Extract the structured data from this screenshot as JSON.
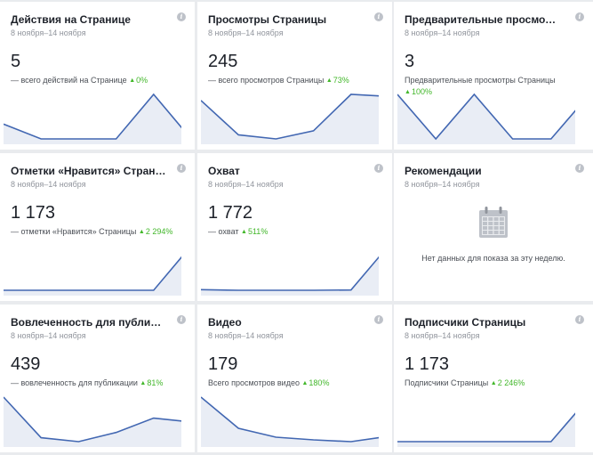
{
  "cards": [
    {
      "title": "Действия на Странице",
      "date": "8 ноября–14 ноября",
      "value": "5",
      "sub_text": "— всего действий на Странице",
      "delta": "0%",
      "series": [
        2,
        0,
        0,
        0,
        6,
        0
      ]
    },
    {
      "title": "Просмотры Страницы",
      "date": "8 ноября–14 ноября",
      "value": "245",
      "sub_text": "— всего просмотров Страницы",
      "delta": "73%",
      "series": [
        44,
        27,
        25,
        29,
        47,
        46
      ]
    },
    {
      "title": "Предварительные просмотры",
      "date": "8 ноября–14 ноября",
      "value": "3",
      "sub_text": "Предварительные просмотры Страницы",
      "delta": "100%",
      "series": [
        1,
        0,
        1,
        0,
        0,
        1
      ]
    },
    {
      "title": "Отметки «Нравится» Страницы",
      "date": "8 ноября–14 ноября",
      "value": "1 173",
      "sub_text": "— отметки «Нравится» Страницы",
      "delta": "2 294%",
      "series": [
        0,
        0,
        0,
        0,
        0,
        1120
      ]
    },
    {
      "title": "Охват",
      "date": "8 ноября–14 ноября",
      "value": "1 772",
      "sub_text": "— охват",
      "delta": "511%",
      "series": [
        60,
        40,
        40,
        40,
        50,
        1500
      ]
    },
    {
      "title": "Рекомендации",
      "date": "8 ноября–14 ноября",
      "empty": true,
      "empty_text": "Нет данных для показа за эту неделю."
    },
    {
      "title": "Вовлеченность для публикации",
      "date": "8 ноября–14 ноября",
      "value": "439",
      "sub_text": "— вовлеченность для публикации",
      "delta": "81%",
      "series": [
        80,
        18,
        12,
        26,
        48,
        42
      ]
    },
    {
      "title": "Видео",
      "date": "8 ноября–14 ноября",
      "value": "179",
      "sub_text": "Всего просмотров видео",
      "delta": "180%",
      "series": [
        60,
        25,
        15,
        12,
        10,
        16
      ]
    },
    {
      "title": "Подписчики Страницы",
      "date": "8 ноября–14 ноября",
      "value": "1 173",
      "sub_text": "Подписчики Страницы",
      "delta": "2 246%",
      "series": [
        0,
        0,
        0,
        0,
        0,
        1120
      ]
    }
  ],
  "colors": {
    "line": "#4267b2",
    "fill": "#e9edf5",
    "delta": "#42b72a"
  },
  "icons": {
    "info": "info-icon",
    "calendar": "calendar-icon"
  }
}
